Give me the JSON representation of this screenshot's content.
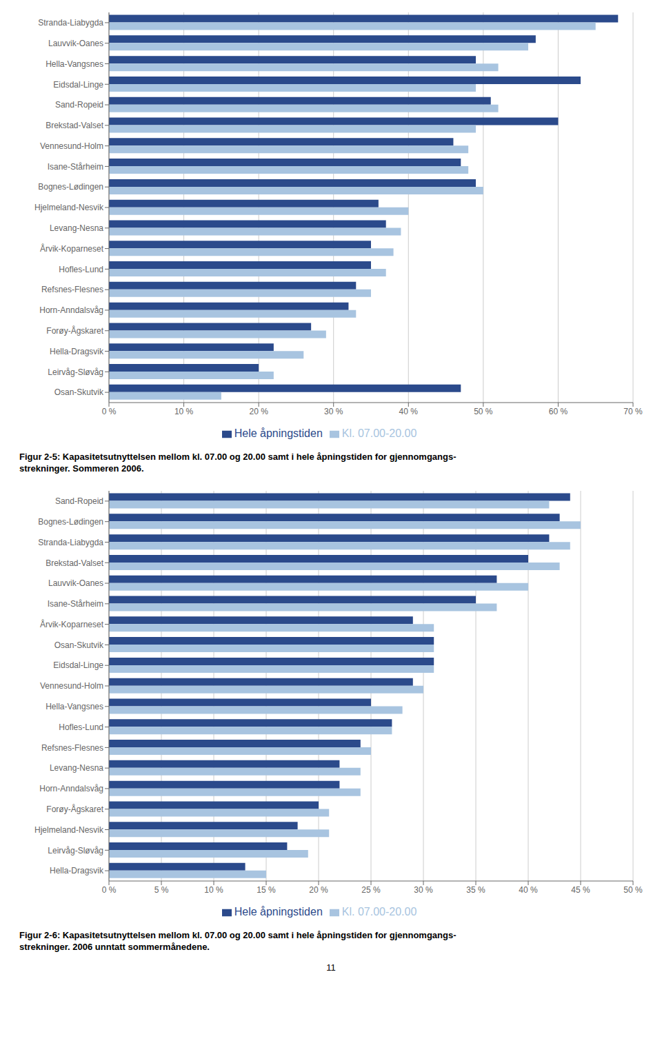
{
  "chart_data": [
    {
      "type": "bar",
      "orientation": "horizontal",
      "title": "Figur 2-5: Kapasitetsutnyttelsen mellom kl. 07.00 og 20.00 samt i hele åpningstiden for gjennomgangs-\nstrekninger. Sommeren 2006.",
      "categories": [
        "Stranda-Liabygda",
        "Lauvvik-Oanes",
        "Hella-Vangsnes",
        "Eidsdal-Linge",
        "Sand-Ropeid",
        "Brekstad-Valset",
        "Vennesund-Holm",
        "Isane-Stårheim",
        "Bognes-Lødingen",
        "Hjelmeland-Nesvik",
        "Levang-Nesna",
        "Årvik-Koparneset",
        "Hofles-Lund",
        "Refsnes-Flesnes",
        "Horn-Anndalsvåg",
        "Forøy-Ågskaret",
        "Hella-Dragsvik",
        "Leirvåg-Sløvåg",
        "Osan-Skutvik"
      ],
      "series": [
        {
          "name": "Hele åpningstiden",
          "color": "#2b4a8b",
          "values": [
            68,
            57,
            49,
            63,
            51,
            60,
            46,
            47,
            49,
            36,
            37,
            35,
            35,
            33,
            32,
            27,
            22,
            20,
            47
          ]
        },
        {
          "name": "Kl. 07.00-20.00",
          "color": "#a8c4e0",
          "values": [
            65,
            56,
            52,
            49,
            52,
            49,
            48,
            48,
            50,
            40,
            39,
            38,
            37,
            35,
            33,
            29,
            26,
            22,
            15
          ]
        }
      ],
      "xlim": [
        0,
        70
      ],
      "xticks": [
        {
          "value": 0,
          "label": "0 %"
        },
        {
          "value": 10,
          "label": "10 %"
        },
        {
          "value": 20,
          "label": "20 %"
        },
        {
          "value": 30,
          "label": "30 %"
        },
        {
          "value": 40,
          "label": "40 %"
        },
        {
          "value": 50,
          "label": "50 %"
        },
        {
          "value": 60,
          "label": "60 %"
        },
        {
          "value": 70,
          "label": "70 %"
        }
      ],
      "grid": true,
      "legend": "bottom"
    },
    {
      "type": "bar",
      "orientation": "horizontal",
      "title": "Figur 2-6: Kapasitetsutnyttelsen mellom kl. 07.00 og 20.00 samt i hele åpningstiden for gjennomgangs-\nstrekninger. 2006 unntatt sommermånedene.",
      "categories": [
        "Sand-Ropeid",
        "Bognes-Lødingen",
        "Stranda-Liabygda",
        "Brekstad-Valset",
        "Lauvvik-Oanes",
        "Isane-Stårheim",
        "Årvik-Koparneset",
        "Osan-Skutvik",
        "Eidsdal-Linge",
        "Vennesund-Holm",
        "Hella-Vangsnes",
        "Hofles-Lund",
        "Refsnes-Flesnes",
        "Levang-Nesna",
        "Horn-Anndalsvåg",
        "Forøy-Ågskaret",
        "Hjelmeland-Nesvik",
        "Leirvåg-Sløvåg",
        "Hella-Dragsvik"
      ],
      "series": [
        {
          "name": "Hele åpningstiden",
          "color": "#2b4a8b",
          "values": [
            44,
            43,
            42,
            40,
            37,
            35,
            29,
            31,
            31,
            29,
            25,
            27,
            24,
            22,
            22,
            20,
            18,
            17,
            13
          ]
        },
        {
          "name": "Kl. 07.00-20.00",
          "color": "#a8c4e0",
          "values": [
            42,
            45,
            44,
            43,
            40,
            37,
            31,
            31,
            31,
            30,
            28,
            27,
            25,
            24,
            24,
            21,
            21,
            19,
            15
          ]
        }
      ],
      "xlim": [
        0,
        50
      ],
      "xticks": [
        {
          "value": 0,
          "label": "0 %"
        },
        {
          "value": 5,
          "label": "5 %"
        },
        {
          "value": 10,
          "label": "10 %"
        },
        {
          "value": 15,
          "label": "15 %"
        },
        {
          "value": 20,
          "label": "20 %"
        },
        {
          "value": 25,
          "label": "25 %"
        },
        {
          "value": 30,
          "label": "30 %"
        },
        {
          "value": 35,
          "label": "35 %"
        },
        {
          "value": 40,
          "label": "40 %"
        },
        {
          "value": 45,
          "label": "45 %"
        },
        {
          "value": 50,
          "label": "50 %"
        }
      ],
      "grid": true,
      "legend": "bottom",
      "annotations": [
        "11"
      ]
    }
  ]
}
